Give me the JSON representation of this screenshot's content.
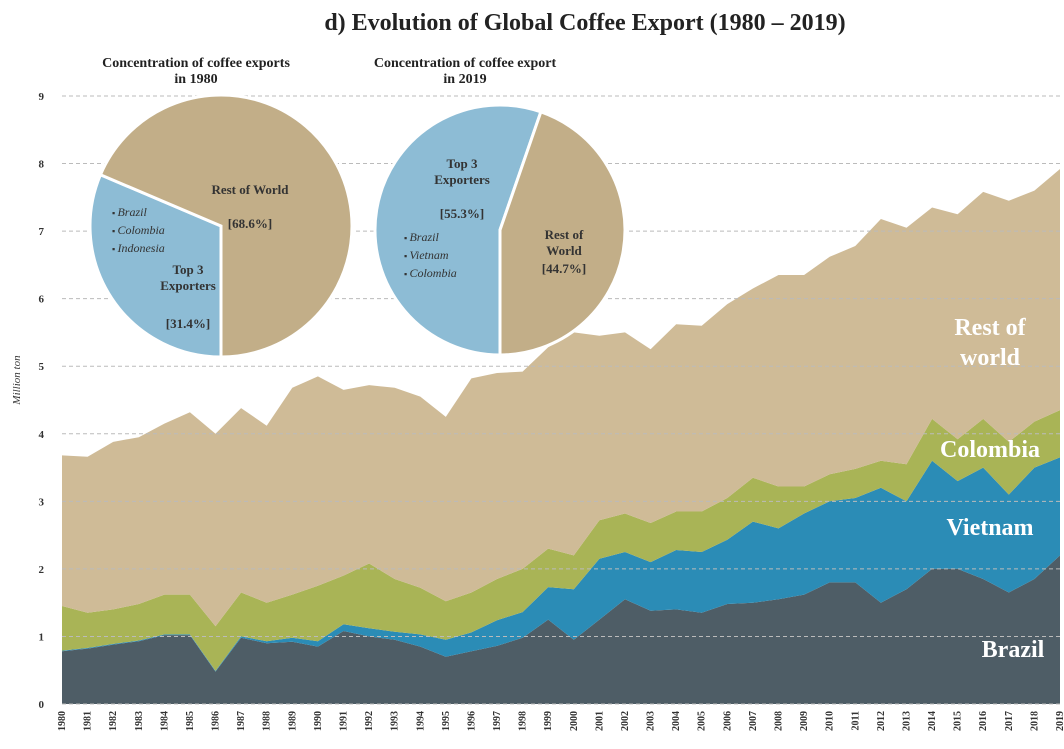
{
  "chart_data": [
    {
      "type": "area",
      "stacked": true,
      "title": "d) Evolution of Global Coffee Export (1980 – 2019)",
      "y_label": "Million ton",
      "categories": [
        "1980",
        "1981",
        "1982",
        "1983",
        "1984",
        "1985",
        "1986",
        "1987",
        "1988",
        "1989",
        "1990",
        "1991",
        "1992",
        "1993",
        "1994",
        "1995",
        "1996",
        "1997",
        "1998",
        "1999",
        "2000",
        "2001",
        "2002",
        "2003",
        "2004",
        "2005",
        "2006",
        "2007",
        "2008",
        "2009",
        "2010",
        "2011",
        "2012",
        "2013",
        "2014",
        "2015",
        "2016",
        "2017",
        "2018",
        "2019"
      ],
      "series": [
        {
          "name": "Brazil",
          "color": "#4e5d66",
          "values": [
            0.78,
            0.82,
            0.88,
            0.93,
            1.02,
            1.02,
            0.48,
            0.98,
            0.9,
            0.92,
            0.85,
            1.08,
            1.0,
            0.95,
            0.85,
            0.7,
            0.78,
            0.86,
            0.98,
            1.25,
            0.95,
            1.25,
            1.55,
            1.38,
            1.4,
            1.35,
            1.48,
            1.5,
            1.55,
            1.62,
            1.8,
            1.8,
            1.5,
            1.7,
            2.0,
            2.0,
            1.85,
            1.65,
            1.85,
            2.2
          ]
        },
        {
          "name": "Vietnam",
          "color": "#2b8cb6",
          "values": [
            0.01,
            0.01,
            0.01,
            0.01,
            0.01,
            0.01,
            0.01,
            0.02,
            0.03,
            0.06,
            0.08,
            0.1,
            0.12,
            0.12,
            0.18,
            0.25,
            0.28,
            0.38,
            0.38,
            0.48,
            0.75,
            0.9,
            0.7,
            0.72,
            0.88,
            0.9,
            0.95,
            1.2,
            1.05,
            1.2,
            1.2,
            1.25,
            1.7,
            1.3,
            1.6,
            1.3,
            1.65,
            1.45,
            1.65,
            1.45
          ]
        },
        {
          "name": "Colombia",
          "color": "#a9b456",
          "values": [
            0.66,
            0.52,
            0.51,
            0.54,
            0.59,
            0.59,
            0.66,
            0.65,
            0.57,
            0.64,
            0.82,
            0.72,
            0.96,
            0.78,
            0.69,
            0.57,
            0.59,
            0.61,
            0.64,
            0.57,
            0.5,
            0.57,
            0.57,
            0.58,
            0.57,
            0.6,
            0.62,
            0.65,
            0.62,
            0.4,
            0.4,
            0.43,
            0.4,
            0.55,
            0.62,
            0.62,
            0.72,
            0.78,
            0.68,
            0.7
          ]
        },
        {
          "name": "Rest of world",
          "color": "#cfbb97",
          "values": [
            2.23,
            2.31,
            2.48,
            2.47,
            2.53,
            2.7,
            2.85,
            2.73,
            2.62,
            3.06,
            3.1,
            2.75,
            2.64,
            2.83,
            2.83,
            2.73,
            3.17,
            3.05,
            2.92,
            2.98,
            3.3,
            2.73,
            2.68,
            2.57,
            2.77,
            2.75,
            2.87,
            2.8,
            3.13,
            3.13,
            3.22,
            3.3,
            3.58,
            3.5,
            3.13,
            3.33,
            3.36,
            3.57,
            3.42,
            3.57
          ]
        }
      ],
      "ylim": [
        0,
        9
      ],
      "yticks": [
        0,
        1,
        2,
        3,
        4,
        5,
        6,
        7,
        8,
        9
      ],
      "grid": true
    },
    {
      "type": "pie",
      "title": "Concentration of coffee exports in 1980",
      "categories": [
        "Top 3 Exporters",
        "Rest of World"
      ],
      "values": [
        31.4,
        68.6
      ],
      "value_labels": [
        "[31.4%]",
        "[68.6%]"
      ],
      "colors": [
        "#8dbcd5",
        "#c2ae88"
      ],
      "top3_members": [
        "Brazil",
        "Colombia",
        "Indonesia"
      ]
    },
    {
      "type": "pie",
      "title": "Concentration of coffee export in 2019",
      "categories": [
        "Top 3 Exporters",
        "Rest of World"
      ],
      "values": [
        55.3,
        44.7
      ],
      "value_labels": [
        "[55.3%]",
        "[44.7%]"
      ],
      "colors": [
        "#8dbcd5",
        "#c2ae88"
      ],
      "top3_members": [
        "Brazil",
        "Vietnam",
        "Colombia"
      ]
    }
  ]
}
